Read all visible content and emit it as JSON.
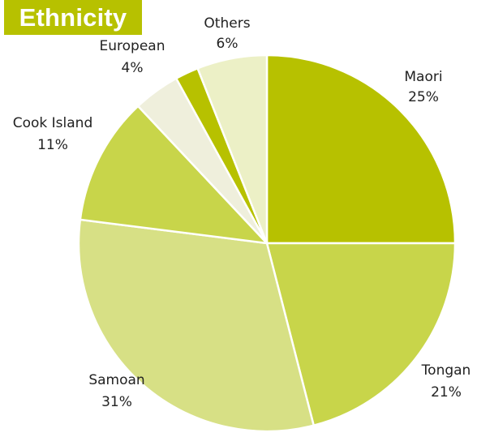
{
  "colors": {
    "title_bg": "#b7c100"
  },
  "chart_data": {
    "type": "pie",
    "title": "Ethnicity",
    "start_angle_deg": 0,
    "direction": "clockwise",
    "slices": [
      {
        "label": "Maori",
        "value": 25,
        "value_label": "25%",
        "color": "#b7c100"
      },
      {
        "label": "Tongan",
        "value": 21,
        "value_label": "21%",
        "color": "#c8d54a"
      },
      {
        "label": "Samoan",
        "value": 31,
        "value_label": "31%",
        "color": "#d7e085"
      },
      {
        "label": "Cook Island",
        "value": 11,
        "value_label": "11%",
        "color": "#c8d54a"
      },
      {
        "label": "European",
        "value": 4,
        "value_label": "4%",
        "color": "#efefdc"
      },
      {
        "label": "",
        "value": 2,
        "value_label": "",
        "color": "#b7c100"
      },
      {
        "label": "Others",
        "value": 6,
        "value_label": "6%",
        "color": "#ecf0c6"
      }
    ]
  }
}
